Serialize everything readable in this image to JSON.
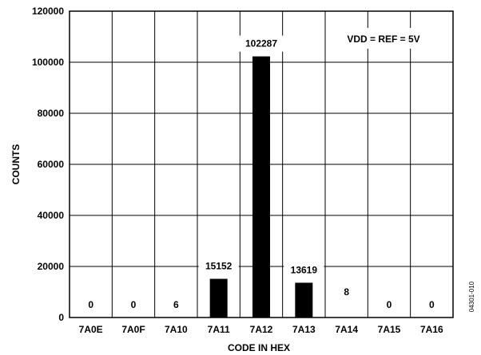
{
  "chart_data": {
    "type": "bar",
    "categories": [
      "7A0E",
      "7A0F",
      "7A10",
      "7A11",
      "7A12",
      "7A13",
      "7A14",
      "7A15",
      "7A16"
    ],
    "values": [
      0,
      0,
      6,
      15152,
      102287,
      13619,
      8,
      0,
      0
    ],
    "data_labels": [
      "0",
      "0",
      "6",
      "15152",
      "102287",
      "13619",
      "8",
      "0",
      "0"
    ],
    "xlabel": "CODE IN HEX",
    "ylabel": "COUNTS",
    "ylim": [
      0,
      120000
    ],
    "yticks": [
      0,
      20000,
      40000,
      60000,
      80000,
      100000,
      120000
    ],
    "ytick_labels": [
      "0",
      "20000",
      "40000",
      "60000",
      "80000",
      "100000",
      "120000"
    ],
    "grid": true,
    "annotation": "VDD = REF = 5V",
    "figure_id": "04301-010",
    "bar_color": "#000000"
  }
}
